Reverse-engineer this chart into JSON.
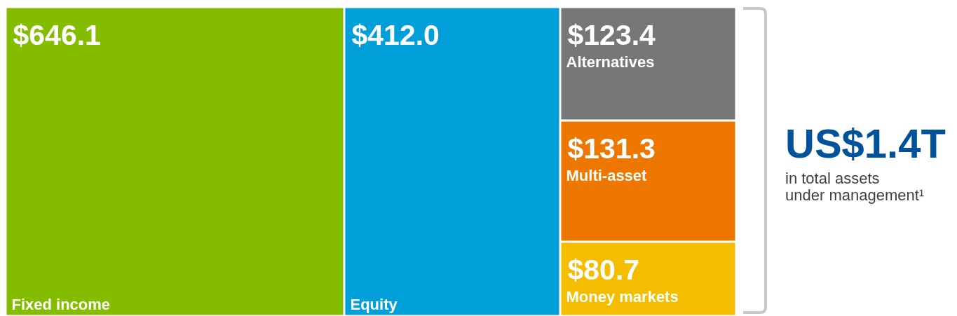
{
  "chart_data": {
    "type": "other",
    "categories": [
      "Fixed income",
      "Equity",
      "Alternatives",
      "Multi-asset",
      "Money markets"
    ],
    "values": [
      646.1,
      412.0,
      123.4,
      131.3,
      80.7
    ],
    "colors": [
      "#84bc00",
      "#009fda",
      "#777777",
      "#ed7700",
      "#f5bd00"
    ],
    "value_labels": [
      "$646.1",
      "$412.0",
      "$123.4",
      "$131.3",
      "$80.7"
    ],
    "annotations": [
      "US$1.4T",
      "in total assets",
      "under management¹"
    ]
  }
}
